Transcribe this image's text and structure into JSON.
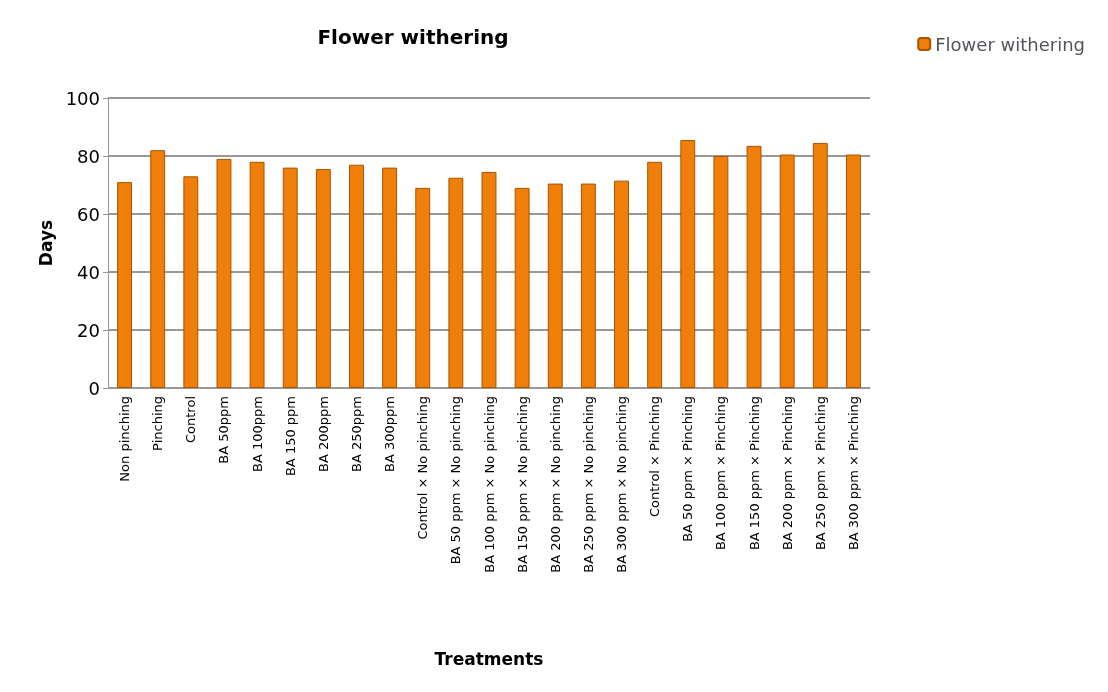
{
  "chart_data": {
    "type": "bar",
    "title": "Flower withering",
    "xlabel": "Treatments",
    "ylabel": "Days",
    "categories": [
      "Non pinching",
      "Pinching",
      "Control",
      "BA 50ppm",
      "BA 100ppm",
      "BA 150 ppm",
      "BA 200ppm",
      "BA 250ppm",
      "BA 300ppm",
      "Control × No pinching",
      "BA 50 ppm × No pinching",
      "BA 100 ppm × No pinching",
      "BA 150 ppm × No pinching",
      "BA 200 ppm × No pinching",
      "BA 250 ppm × No pinching",
      "BA 300 ppm × No pinching",
      "Control × Pinching",
      "BA 50 ppm × Pinching",
      "BA 100 ppm × Pinching",
      "BA 150 ppm × Pinching",
      "BA 200 ppm × Pinching",
      "BA 250 ppm × Pinching",
      "BA 300 ppm × Pinching"
    ],
    "series": [
      {
        "name": "Flower withering",
        "color": "#f07f09",
        "values": [
          71,
          82,
          73,
          79,
          78,
          76,
          75.5,
          77,
          76,
          69,
          72.5,
          74.5,
          69,
          70.5,
          70.5,
          71.5,
          78,
          85.5,
          80,
          83.5,
          80.5,
          84.5,
          80.5
        ]
      }
    ],
    "ylim": [
      0,
      100
    ],
    "yticks": [
      0,
      20,
      40,
      60,
      80,
      100
    ],
    "grid": "y",
    "legend": "top right"
  }
}
